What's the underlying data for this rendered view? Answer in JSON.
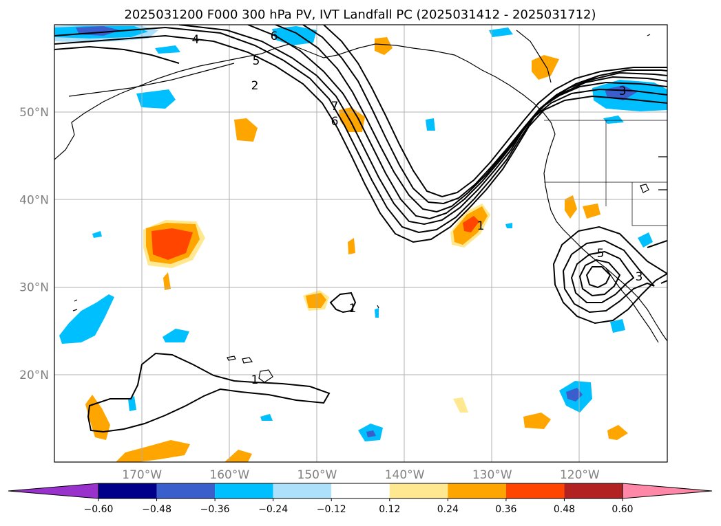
{
  "chart_data": {
    "type": "map-contour",
    "title": "2025031200 F000 300 hPa PV, IVT Landfall PC (2025031412 - 2025031712)",
    "grid": true,
    "lon_range": [
      -180,
      -110
    ],
    "lat_range": [
      10,
      60
    ],
    "lon_ticks": [
      {
        "value": -170,
        "label": "170°W"
      },
      {
        "value": -160,
        "label": "160°W"
      },
      {
        "value": -150,
        "label": "150°W"
      },
      {
        "value": -140,
        "label": "140°W"
      },
      {
        "value": -130,
        "label": "130°W"
      },
      {
        "value": -120,
        "label": "120°W"
      }
    ],
    "lat_ticks": [
      {
        "value": 20,
        "label": "20°N"
      },
      {
        "value": 30,
        "label": "30°N"
      },
      {
        "value": 40,
        "label": "40°N"
      },
      {
        "value": 50,
        "label": "50°N"
      }
    ],
    "colorbar": {
      "levels": [
        -0.6,
        -0.48,
        -0.36,
        -0.24,
        -0.12,
        0.12,
        0.24,
        0.36,
        0.48,
        0.6
      ],
      "labels": [
        "−0.60",
        "−0.48",
        "−0.36",
        "−0.24",
        "−0.12",
        "0.12",
        "0.24",
        "0.36",
        "0.48",
        "0.60"
      ],
      "colors": [
        "#9932CC",
        "#00008B",
        "#3A5FCD",
        "#00BFFF",
        "#ADE0FA",
        "#FFFFFF",
        "#FFE88F",
        "#FFA500",
        "#FF4500",
        "#B22222",
        "#FF88A8"
      ],
      "extend": "both"
    },
    "contour_labels": [
      "4",
      "6",
      "5",
      "2",
      "7",
      "6",
      "1",
      "1",
      "1",
      "5",
      "3",
      "3"
    ],
    "contour_color": "#000000"
  }
}
